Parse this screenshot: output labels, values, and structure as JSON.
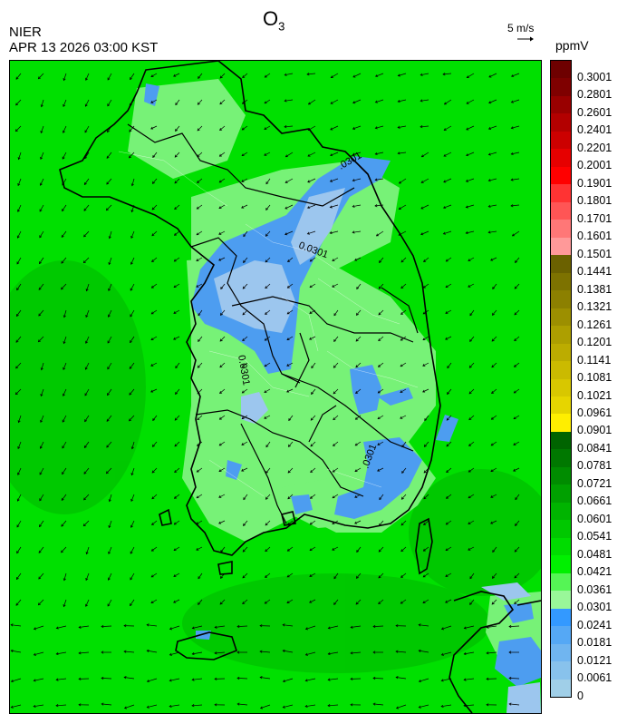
{
  "header": {
    "title_main": "O",
    "title_sub": "3",
    "agency": "NIER",
    "datetime": "APR 13 2026 03:00 KST",
    "wind_reference": "5 m/s",
    "unit": "ppmV"
  },
  "map_labels": {
    "contour_1": ".0301",
    "contour_2": "0.0301",
    "contour_3": "0.0301",
    "contour_4": ".0301"
  },
  "colors": {
    "high_reds": [
      "#6e0000",
      "#7f0000",
      "#990000",
      "#b30000",
      "#cc0000",
      "#e60000",
      "#ff0000",
      "#ff3333",
      "#ff5555",
      "#ff7777",
      "#ff9999"
    ],
    "olives": [
      "#6b6100",
      "#7d7200",
      "#8c8000",
      "#9c8f00",
      "#ad9f00",
      "#bcac00",
      "#cbba00",
      "#d8c700",
      "#e6d500",
      "#f2e300",
      "#ffee00"
    ],
    "greens": [
      "#005f00",
      "#007a00",
      "#008f00",
      "#009f00",
      "#00b000",
      "#00c200",
      "#00d400",
      "#00e600",
      "#33f033",
      "#77f577",
      "#aaf8aa"
    ],
    "blues": [
      "#3399ff",
      "#55a8f5",
      "#70b5f0",
      "#88c2ec",
      "#a0cfe8"
    ],
    "map_green": "#00e600",
    "map_light_green": "#66f066",
    "map_blue": "#4d9df0",
    "map_light_blue": "#99c4ef",
    "dark_green": "#00b800"
  },
  "colorbar": {
    "labels": [
      "0.3001",
      "0.2801",
      "0.2601",
      "0.2401",
      "0.2201",
      "0.2001",
      "0.1901",
      "0.1801",
      "0.1701",
      "0.1601",
      "0.1501",
      "0.1441",
      "0.1381",
      "0.1321",
      "0.1261",
      "0.1201",
      "0.1141",
      "0.1081",
      "0.1021",
      "0.0961",
      "0.0901",
      "0.0841",
      "0.0781",
      "0.0721",
      "0.0661",
      "0.0601",
      "0.0541",
      "0.0481",
      "0.0421",
      "0.0361",
      "0.0301",
      "0.0241",
      "0.0181",
      "0.0121",
      "0.0061",
      "0"
    ],
    "swatches": [
      "#6e0000",
      "#7f0000",
      "#990000",
      "#b30000",
      "#cc0000",
      "#e60000",
      "#ff0000",
      "#ff3333",
      "#ff5555",
      "#ff7777",
      "#ff9999",
      "#6b6100",
      "#7d7200",
      "#8c8000",
      "#9c8f00",
      "#ad9f00",
      "#bcac00",
      "#cbba00",
      "#d8c700",
      "#e6d500",
      "#ffee00",
      "#006400",
      "#007800",
      "#008c00",
      "#00a000",
      "#00b400",
      "#00c800",
      "#00dc00",
      "#00f000",
      "#55f555",
      "#99f799",
      "#3399ff",
      "#55a8f5",
      "#70b5f0",
      "#88c2ec",
      "#a0cfe8"
    ]
  }
}
